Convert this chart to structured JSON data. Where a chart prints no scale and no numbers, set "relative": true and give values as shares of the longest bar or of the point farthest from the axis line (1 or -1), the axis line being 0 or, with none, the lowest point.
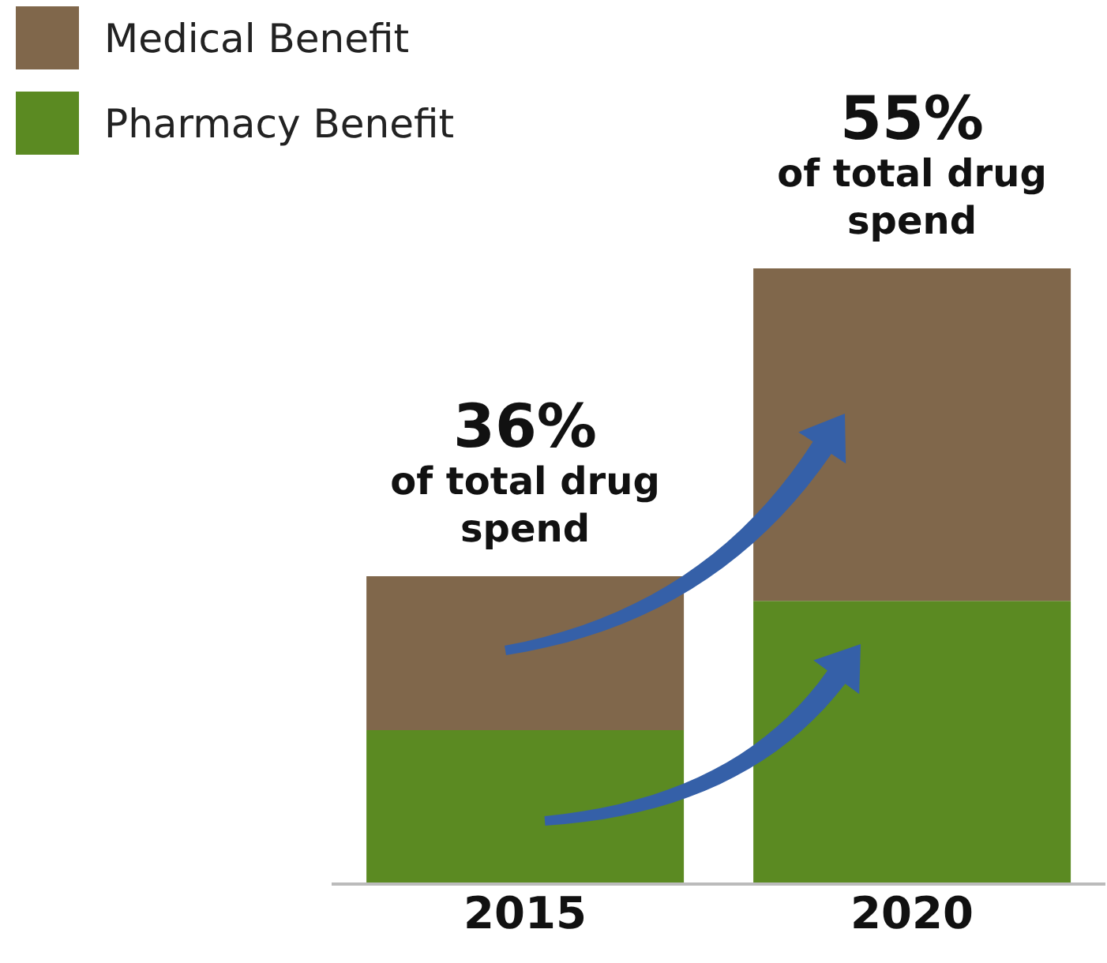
{
  "chart_data": {
    "type": "bar",
    "stacked": true,
    "relative": true,
    "categories": [
      "2015",
      "2020"
    ],
    "series": [
      {
        "name": "Pharmacy Benefit",
        "color": "#5b8a22",
        "values": [
          0.25,
          0.46
        ]
      },
      {
        "name": "Medical Benefit",
        "color": "#80674b",
        "values": [
          0.25,
          0.54
        ]
      }
    ],
    "annotations": [
      {
        "text": "36%",
        "x": "2015",
        "y": 0.5
      },
      {
        "text": "of total drug spend",
        "x": "2015",
        "y": 0.5
      },
      {
        "text": "55%",
        "x": "2020",
        "y": 1
      },
      {
        "text": "of total drug spend",
        "x": "2020",
        "y": 1
      }
    ],
    "legend": "top left",
    "grid": false
  }
}
